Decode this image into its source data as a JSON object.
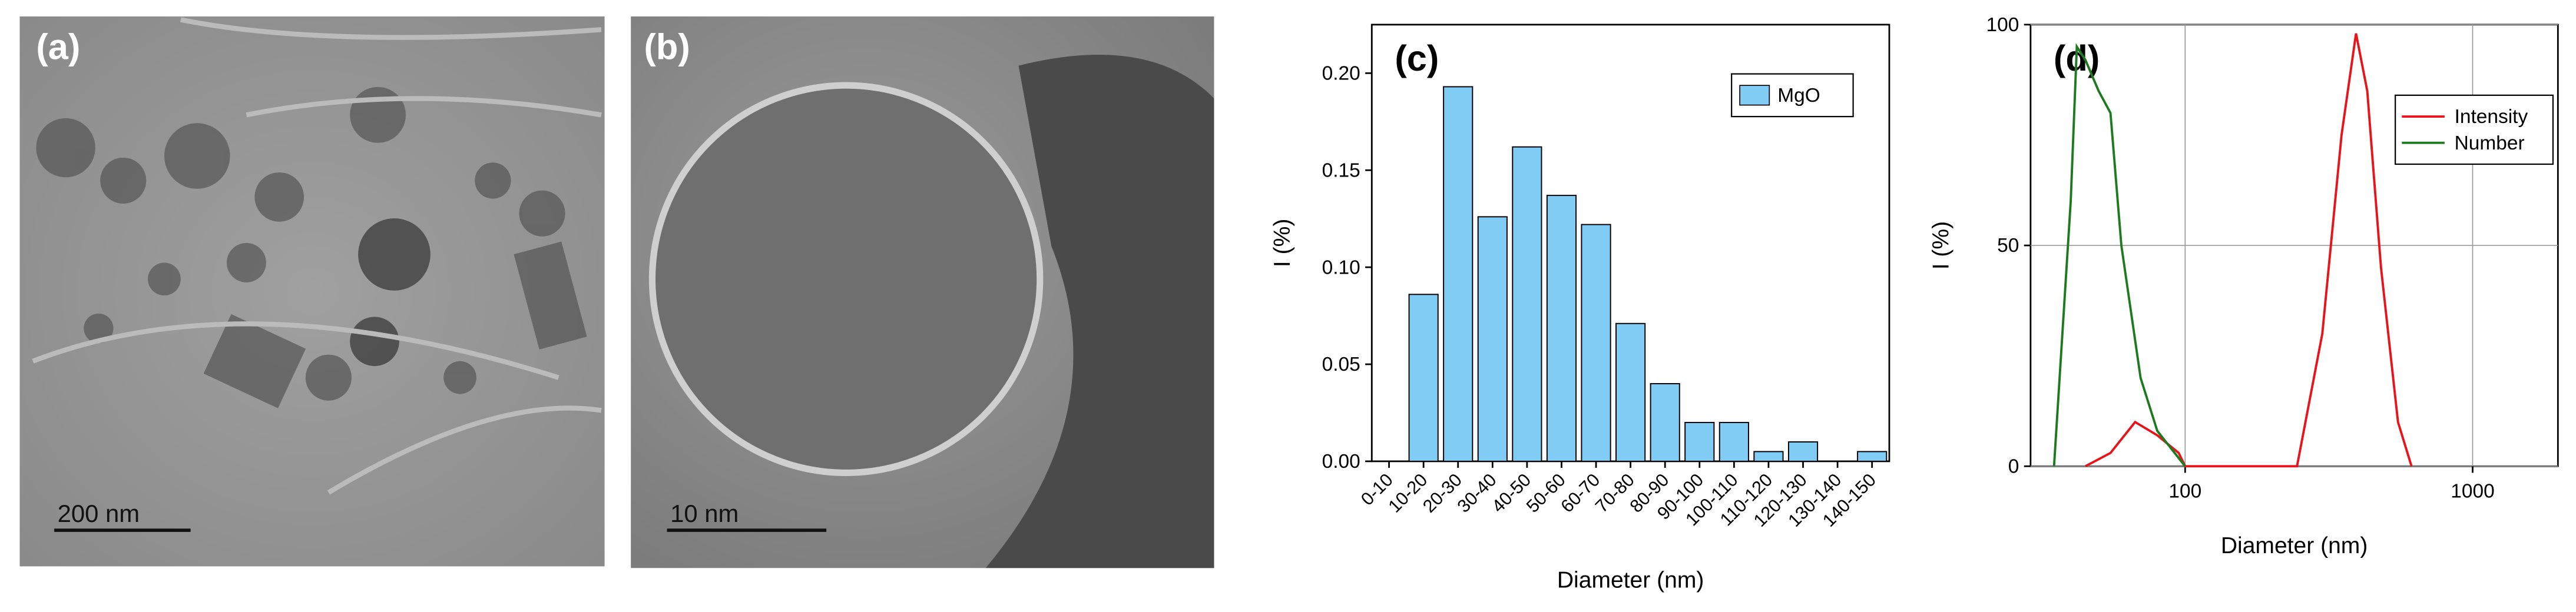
{
  "chart_data": [
    {
      "type": "image",
      "label": "(a)",
      "scale_bar": "200 nm"
    },
    {
      "type": "image",
      "label": "(b)",
      "scale_bar": "10 nm"
    },
    {
      "type": "bar",
      "label": "(c)",
      "xlabel": "Diameter (nm)",
      "ylabel": "I (%)",
      "categories": [
        "0-10",
        "10-20",
        "20-30",
        "30-40",
        "40-50",
        "50-60",
        "60-70",
        "70-80",
        "80-90",
        "90-100",
        "100-110",
        "110-120",
        "120-130",
        "130-140",
        "140-150"
      ],
      "series": [
        {
          "name": "MgO",
          "color": "#80ccf5",
          "values": [
            0,
            0.086,
            0.193,
            0.126,
            0.162,
            0.137,
            0.122,
            0.071,
            0.04,
            0.02,
            0.02,
            0.005,
            0.01,
            0,
            0.005
          ]
        }
      ],
      "ylim": [
        0,
        0.225
      ],
      "yticks": [
        {
          "value": 0,
          "label": "0.00"
        },
        {
          "value": 0.05,
          "label": "0.05"
        },
        {
          "value": 0.1,
          "label": "0.10"
        },
        {
          "value": 0.15,
          "label": "0.15"
        },
        {
          "value": 0.2,
          "label": "0.20"
        }
      ],
      "legend": "upper right"
    },
    {
      "type": "line",
      "label": "(d)",
      "xlabel": "Diameter (nm)",
      "ylabel": "I (%)",
      "xscale": "log",
      "xlim": [
        29,
        1980
      ],
      "xticks": [
        100,
        1000
      ],
      "ylim": [
        0,
        100
      ],
      "yticks": [
        0,
        50,
        100
      ],
      "grid": true,
      "series": [
        {
          "name": "Intensity",
          "color": "#e8141c",
          "x": [
            45,
            55,
            67,
            80,
            95,
            100,
            245,
            300,
            350,
            393,
            430,
            480,
            550,
            613
          ],
          "values": [
            0,
            3,
            10,
            7,
            3,
            0,
            0,
            30,
            75,
            98,
            85,
            45,
            10,
            0
          ]
        },
        {
          "name": "Number",
          "color": "#1e7a1e",
          "x": [
            35,
            40,
            42,
            45,
            50,
            55,
            60,
            70,
            80,
            100
          ],
          "values": [
            0,
            60,
            95,
            92,
            85,
            80,
            50,
            20,
            8,
            0
          ]
        }
      ],
      "legend": "upper right"
    }
  ]
}
